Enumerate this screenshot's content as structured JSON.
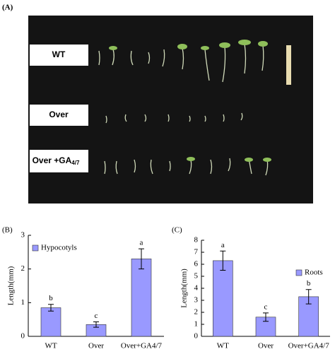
{
  "panel_a": {
    "label": "(A)",
    "rows": [
      {
        "text": "WT"
      },
      {
        "text": "Over"
      },
      {
        "text": "Over +GA",
        "sub": "4/7"
      }
    ]
  },
  "chart_data": [
    {
      "type": "bar",
      "panel_label": "(B)",
      "ylabel": "Length(mm)",
      "categories": [
        "WT",
        "Over",
        "Over+GA4/7"
      ],
      "series": [
        {
          "name": "Hypocotyls",
          "color": "#9999ff",
          "values": [
            0.85,
            0.35,
            2.3
          ],
          "errors": [
            0.1,
            0.08,
            0.3
          ]
        }
      ],
      "annotations": [
        "b",
        "c",
        "a"
      ],
      "ylim": [
        0,
        3
      ],
      "yticks": [
        0,
        1,
        2,
        3
      ],
      "legend": "upper left"
    },
    {
      "type": "bar",
      "panel_label": "(C)",
      "ylabel": "Length(mm)",
      "categories": [
        "WT",
        "Over",
        "Over+GA4/7"
      ],
      "series": [
        {
          "name": "Roots",
          "color": "#9999ff",
          "values": [
            6.3,
            1.6,
            3.3
          ],
          "errors": [
            0.8,
            0.35,
            0.6
          ]
        }
      ],
      "annotations": [
        "a",
        "c",
        "b"
      ],
      "ylim": [
        0,
        8
      ],
      "yticks": [
        0,
        1,
        2,
        3,
        4,
        5,
        6,
        7,
        8
      ],
      "legend": "upper right"
    }
  ]
}
